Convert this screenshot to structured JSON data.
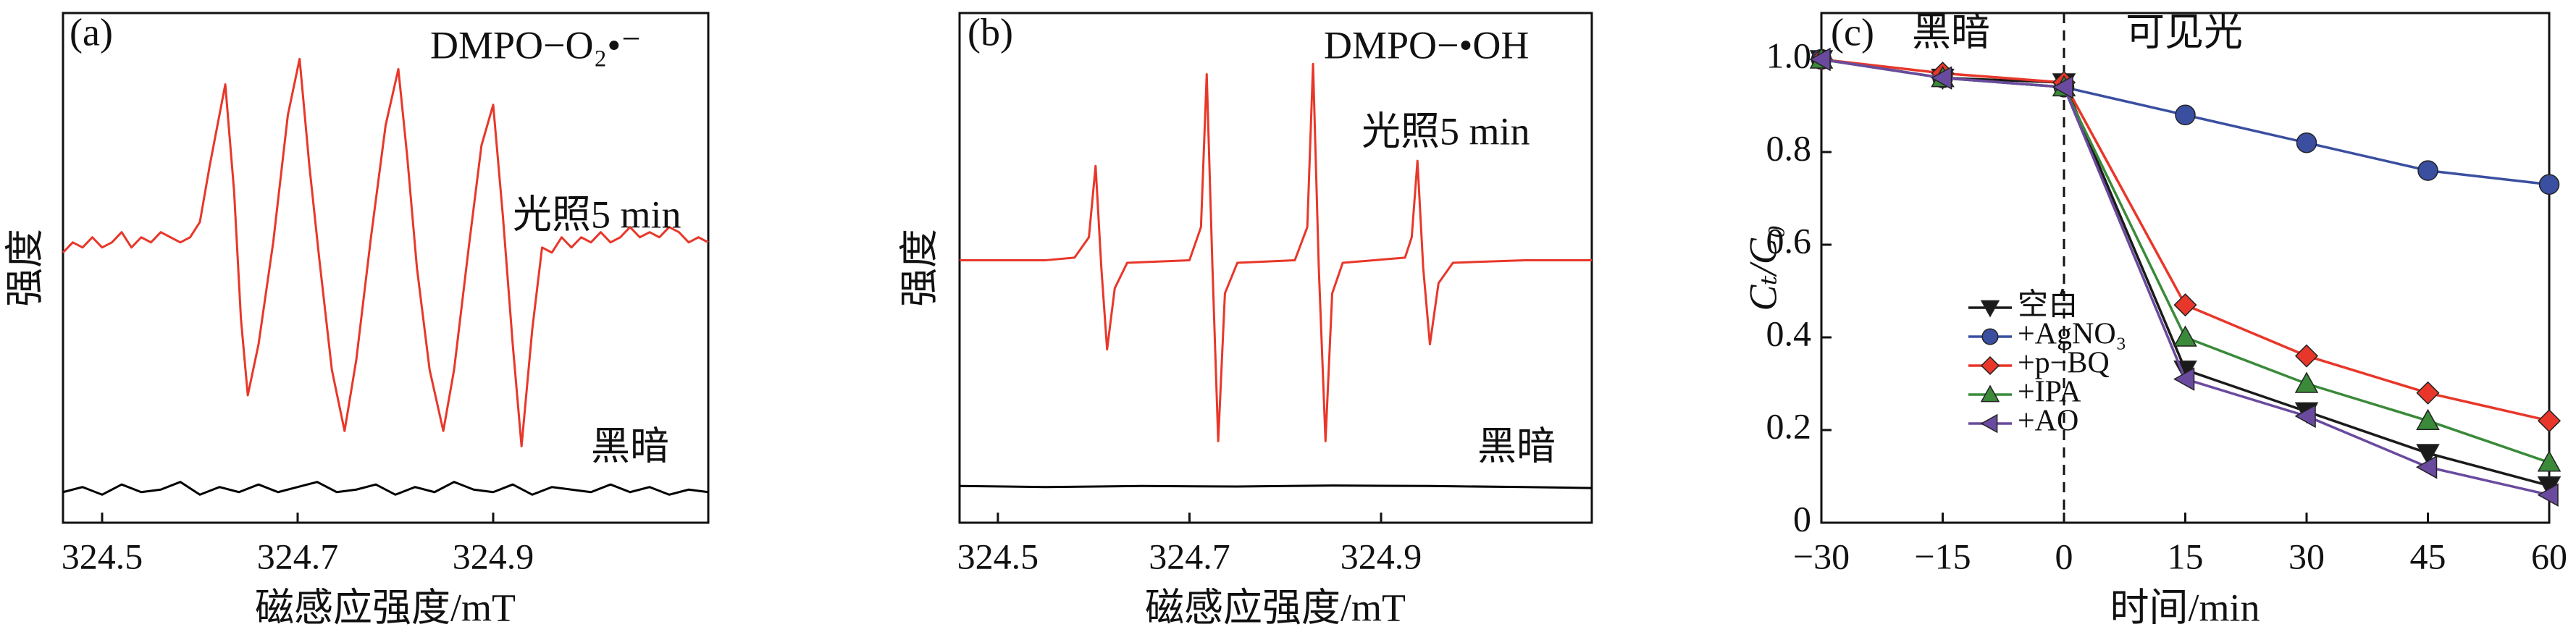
{
  "chart_data": [
    {
      "type": "line",
      "panel_label": "(a)",
      "title": "DMPO−O₂•⁻",
      "xlabel": "磁感应强度/mT",
      "ylabel": "强度",
      "xlim": [
        324.46,
        325.12
      ],
      "xticks": [
        324.5,
        324.7,
        324.9
      ],
      "ylim": [
        0,
        10
      ],
      "series": [
        {
          "name": "光照5 min",
          "color": "#e8372a",
          "x": [
            324.46,
            324.47,
            324.48,
            324.49,
            324.5,
            324.51,
            324.52,
            324.53,
            324.54,
            324.55,
            324.56,
            324.57,
            324.58,
            324.59,
            324.6,
            324.61,
            324.626,
            324.635,
            324.642,
            324.649,
            324.66,
            324.675,
            324.69,
            324.702,
            324.712,
            324.722,
            324.735,
            324.748,
            324.76,
            324.775,
            324.79,
            324.803,
            324.812,
            324.822,
            324.835,
            324.849,
            324.86,
            324.875,
            324.888,
            324.9,
            324.91,
            324.92,
            324.929,
            324.94,
            324.95,
            324.96,
            324.97,
            324.98,
            324.99,
            325,
            325.01,
            325.02,
            325.03,
            325.04,
            325.05,
            325.06,
            325.07,
            325.08,
            325.09,
            325.1,
            325.11,
            325.12
          ],
          "values": [
            5.3,
            5.5,
            5.4,
            5.6,
            5.4,
            5.5,
            5.7,
            5.4,
            5.6,
            5.5,
            5.7,
            5.6,
            5.5,
            5.6,
            5.9,
            7,
            8.6,
            6.5,
            4,
            2.5,
            3.5,
            5.5,
            8,
            9.1,
            7,
            5.2,
            3,
            1.8,
            3.2,
            5.6,
            7.8,
            8.9,
            7.2,
            5,
            3,
            1.8,
            3,
            5.4,
            7.4,
            8.2,
            6,
            3.5,
            1.5,
            3.8,
            5.4,
            5.3,
            5.6,
            5.4,
            5.6,
            5.5,
            5.7,
            5.5,
            5.6,
            5.8,
            5.6,
            5.7,
            5.6,
            5.8,
            5.7,
            5.5,
            5.6,
            5.5
          ]
        },
        {
          "name": "黑暗",
          "color": "#000000",
          "x": [
            324.46,
            324.48,
            324.5,
            324.52,
            324.54,
            324.56,
            324.58,
            324.6,
            324.62,
            324.64,
            324.66,
            324.68,
            324.7,
            324.72,
            324.74,
            324.76,
            324.78,
            324.8,
            324.82,
            324.84,
            324.86,
            324.88,
            324.9,
            324.92,
            324.94,
            324.96,
            324.98,
            325,
            325.02,
            325.04,
            325.06,
            325.08,
            325.1,
            325.12
          ],
          "values": [
            0.6,
            0.7,
            0.55,
            0.75,
            0.6,
            0.65,
            0.8,
            0.55,
            0.7,
            0.6,
            0.75,
            0.6,
            0.7,
            0.8,
            0.6,
            0.65,
            0.75,
            0.55,
            0.7,
            0.6,
            0.8,
            0.65,
            0.6,
            0.75,
            0.55,
            0.7,
            0.65,
            0.6,
            0.75,
            0.6,
            0.7,
            0.55,
            0.65,
            0.6
          ]
        }
      ]
    },
    {
      "type": "line",
      "panel_label": "(b)",
      "title": "DMPO−•OH",
      "xlabel": "磁感应强度/mT",
      "ylabel": "强度",
      "xlim": [
        324.46,
        325.12
      ],
      "xticks": [
        324.5,
        324.7,
        324.9
      ],
      "ylim": [
        0,
        10
      ],
      "series": [
        {
          "name": "光照5 min",
          "color": "#e8372a",
          "x": [
            324.46,
            324.5,
            324.55,
            324.58,
            324.595,
            324.602,
            324.608,
            324.614,
            324.622,
            324.635,
            324.7,
            324.712,
            324.718,
            324.724,
            324.73,
            324.737,
            324.75,
            324.81,
            324.823,
            324.829,
            324.835,
            324.842,
            324.849,
            324.86,
            324.925,
            324.932,
            324.938,
            324.944,
            324.951,
            324.96,
            324.975,
            325.05,
            325.12
          ],
          "values": [
            5.15,
            5.15,
            5.15,
            5.2,
            5.6,
            7,
            5,
            3.4,
            4.6,
            5.1,
            5.15,
            5.8,
            8.8,
            5,
            1.6,
            4.5,
            5.1,
            5.15,
            5.8,
            9,
            5,
            1.6,
            4.5,
            5.1,
            5.2,
            5.6,
            7.1,
            5,
            3.5,
            4.7,
            5.1,
            5.15,
            5.15
          ]
        },
        {
          "name": "黑暗",
          "color": "#000000",
          "x": [
            324.46,
            324.55,
            324.65,
            324.75,
            324.85,
            324.95,
            325.05,
            325.12
          ],
          "values": [
            0.72,
            0.7,
            0.72,
            0.71,
            0.73,
            0.72,
            0.7,
            0.68
          ]
        }
      ]
    },
    {
      "type": "line",
      "panel_label": "(c)",
      "xlabel": "时间/min",
      "ylabel": "Cₜ/C₀",
      "annotations": [
        "黑暗",
        "可见光"
      ],
      "divider_x": 0,
      "x": [
        -30,
        -15,
        0,
        15,
        30,
        45,
        60
      ],
      "xlim": [
        -30,
        60
      ],
      "xticks": [
        {
          "value": -30,
          "label": "−30"
        },
        {
          "value": -15,
          "label": "−15"
        },
        0,
        15,
        30,
        45,
        60
      ],
      "ylim": [
        0,
        1.1
      ],
      "yticks": [
        0,
        0.2,
        0.4,
        0.6,
        0.8,
        {
          "value": 1,
          "label": "1.0"
        }
      ],
      "legend": "lower left",
      "series": [
        {
          "name": "空白",
          "color": "#1a1a1a",
          "marker": "triangle-down",
          "values": [
            1,
            0.96,
            0.95,
            0.33,
            0.24,
            0.15,
            0.08
          ]
        },
        {
          "name": "+AgNO₃",
          "color": "#3a4fa0",
          "marker": "circle",
          "values": [
            1,
            0.96,
            0.94,
            0.88,
            0.82,
            0.76,
            0.73
          ]
        },
        {
          "name": "+p−BQ",
          "color": "#e8372a",
          "marker": "diamond",
          "values": [
            1,
            0.97,
            0.95,
            0.47,
            0.36,
            0.28,
            0.22
          ]
        },
        {
          "name": "+IPA",
          "color": "#3a8a3a",
          "marker": "triangle-up",
          "values": [
            1,
            0.96,
            0.94,
            0.4,
            0.3,
            0.22,
            0.13
          ]
        },
        {
          "name": "+AO",
          "color": "#6a4a9e",
          "marker": "triangle-left",
          "values": [
            1,
            0.96,
            0.94,
            0.31,
            0.23,
            0.12,
            0.06
          ]
        }
      ]
    }
  ]
}
